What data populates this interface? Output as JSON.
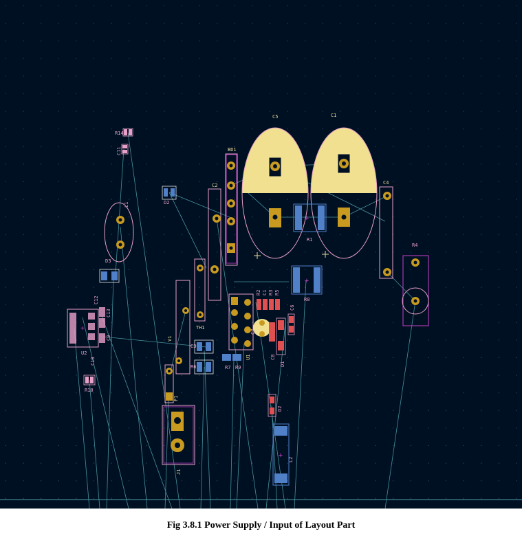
{
  "caption": "Fig 3.8.1 Power Supply / Input of Layout Part",
  "colors": {
    "board_bg": "#001023",
    "grid_dot": "#4a5a72",
    "ratsnest": "#4fa0a8",
    "courtyard": "#c840c8",
    "silkscreen": "#e8a0c8",
    "pad_copper": "#c89a20",
    "pad_smd_red": "#e05050",
    "pad_smd_blue": "#5080c8",
    "cap_fill": "#f0e090"
  },
  "refs": {
    "C5": "C5",
    "C1_big": "C1",
    "BD1": "BD1",
    "C2": "C2",
    "C4": "C4",
    "R4": "R4",
    "R1": "R1",
    "R8": "R8",
    "L1": "L1",
    "R14": "R14",
    "C11": "C11",
    "D2_top": "D2",
    "TH1": "TH1",
    "V1": "V1",
    "F1": "F1",
    "J1": "J1",
    "U2": "U2",
    "C10": "C10",
    "C12": "C12",
    "C13": "C13",
    "C9": "C9",
    "R10": "R10",
    "C6": "C6",
    "C7": "C7",
    "C8": "C8",
    "D1": "D1",
    "D2_bottom": "D2",
    "U1": "U1",
    "R7": "R7",
    "R9": "R9",
    "R2": "R2",
    "R3": "R3",
    "R5": "R5",
    "C1_small": "C1",
    "C3": "C3",
    "R6": "R6",
    "L2": "L2",
    "D3": "D3"
  }
}
